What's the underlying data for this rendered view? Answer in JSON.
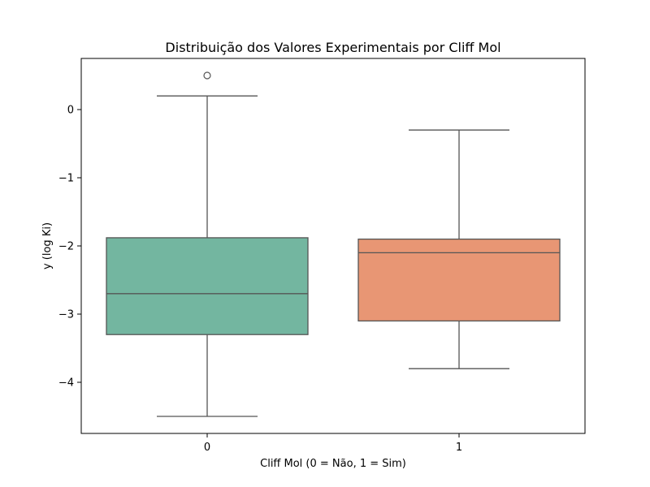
{
  "chart_data": {
    "type": "boxplot",
    "title": "Distribuição dos Valores Experimentais por Cliff Mol",
    "xlabel": "Cliff Mol (0 = Não, 1 = Sim)",
    "ylabel": "y (log Ki)",
    "categories": [
      "0",
      "1"
    ],
    "ylim": [
      -4.75,
      0.75
    ],
    "yticks": [
      0,
      -1,
      -2,
      -3,
      -4
    ],
    "ytick_labels": [
      "0",
      "−1",
      "−2",
      "−3",
      "−4"
    ],
    "grid": false,
    "boxes": [
      {
        "category": "0",
        "whisker_low": -4.5,
        "q1": -3.3,
        "median": -2.7,
        "q3": -1.88,
        "whisker_high": 0.2,
        "outliers": [
          0.5
        ],
        "color": "#73b6a0"
      },
      {
        "category": "1",
        "whisker_low": -3.8,
        "q1": -3.1,
        "median": -2.1,
        "q3": -1.9,
        "whisker_high": -0.3,
        "outliers": [],
        "color": "#e89674"
      }
    ]
  }
}
